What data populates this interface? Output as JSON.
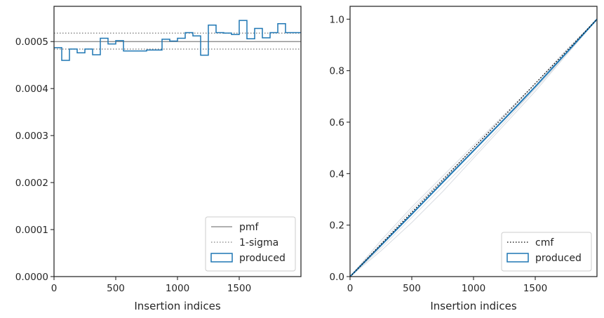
{
  "chart_data": [
    {
      "type": "line",
      "panel": "left",
      "title": "",
      "xlabel": "Insertion indices",
      "ylabel": "",
      "xlim": [
        0,
        2000
      ],
      "ylim": [
        0,
        0.000575
      ],
      "xticks": [
        0,
        500,
        1000,
        1500
      ],
      "yticks": [
        0,
        0.0001,
        0.0002,
        0.0003,
        0.0004,
        0.0005
      ],
      "ytick_labels": [
        "0.0000",
        "0.0001",
        "0.0002",
        "0.0003",
        "0.0004",
        "0.0005"
      ],
      "grid": false,
      "legend_position": "bottom-right",
      "pmf": 0.0005,
      "sigma_band": [
        0.000484,
        0.000518
      ],
      "produced_step": {
        "bin_edges": [
          0,
          62.5,
          125,
          187.5,
          250,
          312.5,
          375,
          437.5,
          500,
          562.5,
          625,
          687.5,
          750,
          812.5,
          875,
          937.5,
          1000,
          1062.5,
          1125,
          1187.5,
          1250,
          1312.5,
          1375,
          1437.5,
          1500,
          1562.5,
          1625,
          1687.5,
          1750,
          1812.5,
          1875,
          1937.5,
          2000
        ],
        "values": [
          0.000487,
          0.00046,
          0.000484,
          0.000476,
          0.000484,
          0.000472,
          0.000507,
          0.000495,
          0.000502,
          0.00048,
          0.00048,
          0.00048,
          0.000482,
          0.000482,
          0.000505,
          0.000501,
          0.000507,
          0.000519,
          0.000512,
          0.000471,
          0.000535,
          0.000519,
          0.000518,
          0.000515,
          0.000545,
          0.000506,
          0.000528,
          0.000508,
          0.000519,
          0.000538,
          0.000519,
          0.000519
        ]
      },
      "legend": [
        "pmf",
        "1-sigma",
        "produced"
      ],
      "colors": {
        "pmf": "#808080",
        "sigma": "#808080",
        "produced": "#1f77b4"
      }
    },
    {
      "type": "line",
      "panel": "right",
      "title": "",
      "xlabel": "Insertion indices",
      "ylabel": "",
      "xlim": [
        0,
        2000
      ],
      "ylim": [
        0,
        1.05
      ],
      "xticks": [
        0,
        500,
        1000,
        1500
      ],
      "yticks": [
        0,
        0.2,
        0.4,
        0.6,
        0.8,
        1.0
      ],
      "ytick_labels": [
        "0.0",
        "0.2",
        "0.4",
        "0.6",
        "0.8",
        "1.0"
      ],
      "grid": false,
      "legend_position": "bottom-right",
      "cmf": {
        "x": [
          0,
          2000
        ],
        "y": [
          0,
          1.0
        ]
      },
      "produced": {
        "x": [
          0,
          250,
          500,
          750,
          1000,
          1250,
          1500,
          1750,
          2000
        ],
        "y": [
          0,
          0.121,
          0.243,
          0.366,
          0.489,
          0.612,
          0.738,
          0.868,
          1.0
        ]
      },
      "samples": [
        {
          "x": [
            0,
            250,
            500,
            750,
            1000,
            1250,
            1500,
            1750,
            2000
          ],
          "y": [
            0,
            0.1,
            0.21,
            0.33,
            0.46,
            0.59,
            0.72,
            0.86,
            1.0
          ]
        },
        {
          "x": [
            0,
            250,
            500,
            750,
            1000,
            1250,
            1500,
            1750,
            2000
          ],
          "y": [
            0,
            0.14,
            0.27,
            0.39,
            0.51,
            0.63,
            0.75,
            0.87,
            1.0
          ]
        },
        {
          "x": [
            0,
            250,
            500,
            750,
            1000,
            1250,
            1500,
            1750,
            2000
          ],
          "y": [
            0,
            0.11,
            0.23,
            0.35,
            0.47,
            0.6,
            0.73,
            0.86,
            1.0
          ]
        },
        {
          "x": [
            0,
            250,
            500,
            750,
            1000,
            1250,
            1500,
            1750,
            2000
          ],
          "y": [
            0,
            0.13,
            0.26,
            0.38,
            0.5,
            0.62,
            0.75,
            0.88,
            1.0
          ]
        },
        {
          "x": [
            0,
            250,
            500,
            750,
            1000,
            1250,
            1500,
            1750,
            2000
          ],
          "y": [
            0,
            0.12,
            0.24,
            0.37,
            0.5,
            0.61,
            0.73,
            0.86,
            1.0
          ]
        }
      ],
      "legend": [
        "cmf",
        "produced"
      ],
      "colors": {
        "cmf": "#000000",
        "produced": "#1f77b4",
        "samples": "#d9dde2"
      }
    }
  ]
}
